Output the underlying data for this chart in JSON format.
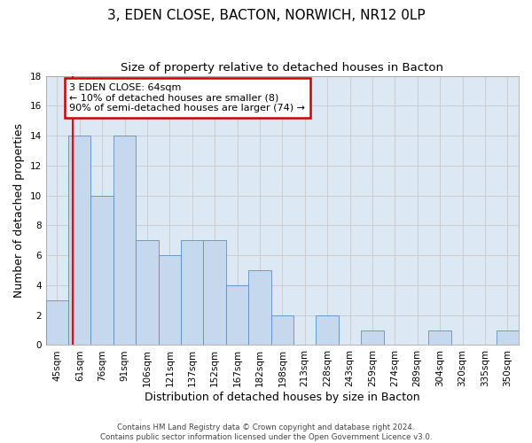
{
  "title": "3, EDEN CLOSE, BACTON, NORWICH, NR12 0LP",
  "subtitle": "Size of property relative to detached houses in Bacton",
  "xlabel": "Distribution of detached houses by size in Bacton",
  "ylabel": "Number of detached properties",
  "bar_values": [
    3,
    14,
    10,
    14,
    7,
    6,
    7,
    7,
    4,
    5,
    2,
    0,
    2,
    0,
    1,
    0,
    0,
    1,
    0,
    0,
    1
  ],
  "bin_labels": [
    "45sqm",
    "61sqm",
    "76sqm",
    "91sqm",
    "106sqm",
    "121sqm",
    "137sqm",
    "152sqm",
    "167sqm",
    "182sqm",
    "198sqm",
    "213sqm",
    "228sqm",
    "243sqm",
    "259sqm",
    "274sqm",
    "289sqm",
    "304sqm",
    "320sqm",
    "335sqm",
    "350sqm"
  ],
  "bar_color": "#c5d8ed",
  "bar_edge_color": "#5b8fc9",
  "bar_width": 1.0,
  "ylim": [
    0,
    18
  ],
  "yticks": [
    0,
    2,
    4,
    6,
    8,
    10,
    12,
    14,
    16,
    18
  ],
  "grid_color": "#cccccc",
  "bg_color": "#dde8f5",
  "red_line_x": 0.7,
  "annotation_text": "3 EDEN CLOSE: 64sqm\n← 10% of detached houses are smaller (8)\n90% of semi-detached houses are larger (74) →",
  "annotation_box_color": "#ffffff",
  "annotation_box_edge_color": "#cc0000",
  "footer_text": "Contains HM Land Registry data © Crown copyright and database right 2024.\nContains public sector information licensed under the Open Government Licence v3.0.",
  "title_fontsize": 11,
  "subtitle_fontsize": 9.5,
  "tick_fontsize": 7.5,
  "ylabel_fontsize": 9,
  "xlabel_fontsize": 9,
  "annotation_fontsize": 8
}
